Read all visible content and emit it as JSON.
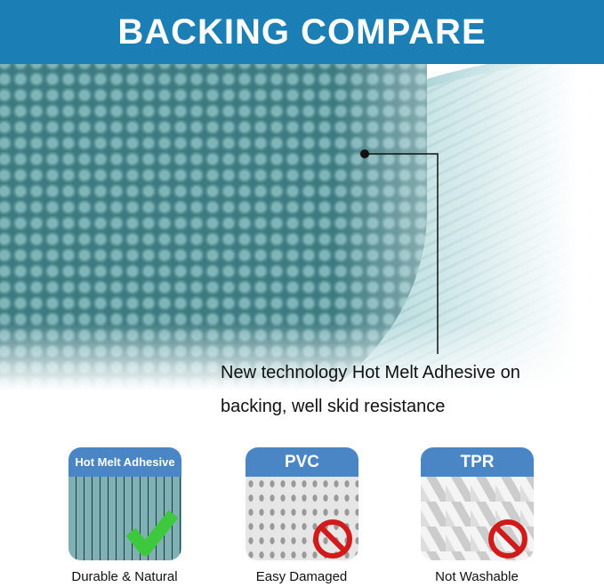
{
  "header": {
    "title": "BACKING COMPARE"
  },
  "callout": {
    "line1": "New technology Hot Melt Adhesive on",
    "line2": "backing, well skid resistance"
  },
  "tiles": [
    {
      "label": "Hot Melt Adhesive",
      "caption": "Durable & Natural",
      "mark": "check-icon",
      "mark_color": "#3ec83e"
    },
    {
      "label": "PVC",
      "caption": "Easy Damaged",
      "mark": "prohibited-icon",
      "mark_color": "#d11a1a"
    },
    {
      "label": "TPR",
      "caption": "Not Washable",
      "mark": "prohibited-icon",
      "mark_color": "#d11a1a"
    }
  ],
  "colors": {
    "header": "#1b7fb6",
    "tile_bar": "#4a86c5",
    "mat": "#8fc2c6"
  }
}
